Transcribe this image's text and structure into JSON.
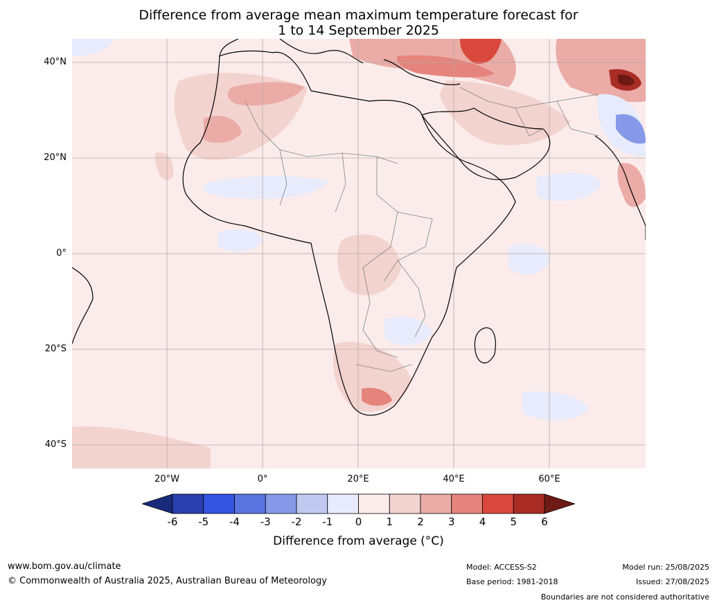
{
  "title": {
    "line1": "Difference from average mean maximum temperature forecast for",
    "line2": "1 to 14 September 2025"
  },
  "map": {
    "lat_labels": [
      "40°N",
      "20°N",
      "0°",
      "20°S",
      "40°S"
    ],
    "lon_labels": [
      "20°W",
      "0°",
      "20°E",
      "40°E",
      "60°E"
    ],
    "background_color": "#fbeceb",
    "land_outline_color": "#000000",
    "border_color": "#808080"
  },
  "colorbar": {
    "ticks": [
      "-6",
      "-5",
      "-4",
      "-3",
      "-2",
      "-1",
      "0",
      "1",
      "2",
      "3",
      "4",
      "5",
      "6"
    ],
    "colors": [
      "#1a2a7a",
      "#2a3fae",
      "#3355e0",
      "#5a75e0",
      "#8599e8",
      "#c1c9f3",
      "#e8ebfb",
      "#fbeceb",
      "#f3d3cf",
      "#ebaba6",
      "#e5847c",
      "#d9483d",
      "#a92d25",
      "#6e1a14"
    ],
    "label": "Difference from average (°C)"
  },
  "footer": {
    "website": "www.bom.gov.au/climate",
    "copyright": "© Commonwealth of Australia 2025, Australian Bureau of Meteorology",
    "model": "Model: ACCESS-S2",
    "base_period": "Base period: 1981-2018",
    "model_run": "Model run: 25/08/2025",
    "issued": "Issued: 27/08/2025",
    "disclaimer": "Boundaries are not considered authoritative"
  }
}
